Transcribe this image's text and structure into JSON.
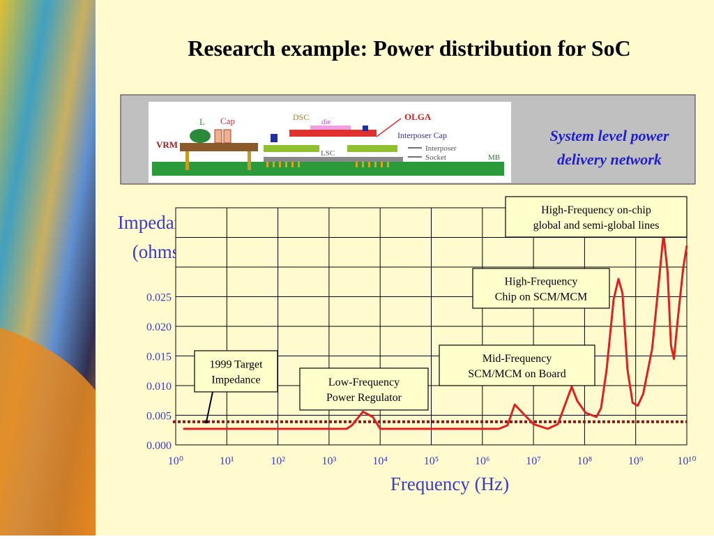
{
  "chart_data": {
    "type": "line",
    "title": "Research example: Power distribution for SoC",
    "ylabel": [
      "Impedance",
      "(ohms)"
    ],
    "xlabel": "Frequency (Hz)",
    "xscale": "log",
    "xlim": [
      1,
      10000000000
    ],
    "ylim": [
      0,
      0.04
    ],
    "xticks": [
      {
        "value": 1,
        "label": "10⁰"
      },
      {
        "value": 10,
        "label": "10¹"
      },
      {
        "value": 100,
        "label": "10²"
      },
      {
        "value": 1000,
        "label": "10³"
      },
      {
        "value": 10000,
        "label": "10⁴"
      },
      {
        "value": 100000,
        "label": "10⁵"
      },
      {
        "value": 1000000,
        "label": "10⁶"
      },
      {
        "value": 10000000,
        "label": "10⁷"
      },
      {
        "value": 100000000,
        "label": "10⁸"
      },
      {
        "value": 1000000000,
        "label": "10⁹"
      },
      {
        "value": 10000000000,
        "label": "10¹⁰"
      }
    ],
    "yticks": [
      {
        "value": 0,
        "label": "0.000"
      },
      {
        "value": 0.005,
        "label": "0.005"
      },
      {
        "value": 0.01,
        "label": "0.010"
      },
      {
        "value": 0.015,
        "label": "0.015"
      },
      {
        "value": 0.02,
        "label": "0.020"
      },
      {
        "value": 0.025,
        "label": "0.025"
      }
    ],
    "ygrid": [
      0,
      0.005,
      0.01,
      0.015,
      0.02,
      0.025,
      0.03,
      0.035,
      0.04
    ],
    "grid": true,
    "series": [
      {
        "color": "#e02020",
        "x": [
          1.4,
          2200,
          2800,
          4600,
          7200,
          10000,
          430000,
          2100000,
          3100000,
          4300000,
          5800000,
          10000000,
          19000000,
          30000000,
          44000000,
          56000000,
          72000000,
          105000000,
          170000000,
          210000000,
          270000000,
          370000000,
          460000000,
          550000000,
          690000000,
          870000000,
          1100000000,
          1400000000,
          2100000000,
          2700000000,
          3500000000,
          4200000000,
          4900000000,
          5600000000,
          6600000000,
          8500000000,
          10000000000
        ],
        "y": [
          0.0027,
          0.0027,
          0.0033,
          0.0056,
          0.0047,
          0.0027,
          0.0027,
          0.0027,
          0.0033,
          0.0068,
          0.0056,
          0.0035,
          0.0027,
          0.0035,
          0.0074,
          0.0098,
          0.0074,
          0.0054,
          0.0047,
          0.0062,
          0.0127,
          0.0245,
          0.028,
          0.0256,
          0.0127,
          0.0071,
          0.0066,
          0.0086,
          0.0162,
          0.0256,
          0.0356,
          0.0292,
          0.0168,
          0.0145,
          0.0209,
          0.0298,
          0.0336
        ]
      }
    ],
    "reference_line": {
      "value": 0.0039,
      "color": "#8b1a1a"
    },
    "annotations": [
      {
        "lines": [
          "High-Frequency on-chip",
          "global and semi-global lines"
        ]
      },
      {
        "lines": [
          "High-Frequency",
          "Chip on SCM/MCM"
        ]
      },
      {
        "lines": [
          "Mid-Frequency",
          "SCM/MCM on Board"
        ]
      },
      {
        "lines": [
          "Low-Frequency",
          "Power Regulator"
        ]
      },
      {
        "lines": [
          "1999 Target",
          "Impedance"
        ]
      }
    ]
  },
  "figure": {
    "caption": [
      "System level power",
      "delivery network"
    ],
    "labels": {
      "l": "L",
      "cap": "Cap",
      "vrm": "VRM",
      "dsc": "DSC",
      "die": "die",
      "olga": "OLGA",
      "interposer_cap": "Interposer Cap",
      "interposer": "Interposer",
      "socket": "Socket",
      "lsc": "LSC",
      "mb": "MB"
    }
  }
}
